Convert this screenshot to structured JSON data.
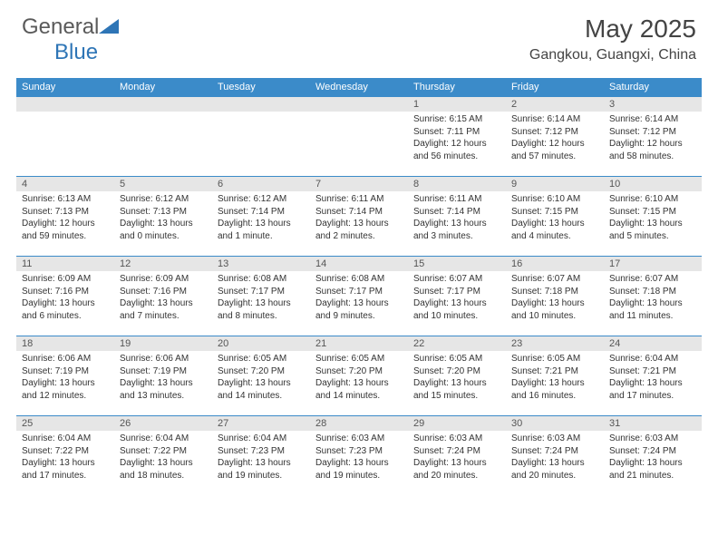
{
  "logo": {
    "text1": "General",
    "text2": "Blue"
  },
  "title": "May 2025",
  "location": "Gangkou, Guangxi, China",
  "colors": {
    "header_bg": "#3b8bc9",
    "header_text": "#ffffff",
    "daybar_bg": "#e6e6e6",
    "daybar_border": "#3b8bc9",
    "body_bg": "#ffffff",
    "text": "#333333",
    "logo_gray": "#5a5a5a",
    "logo_blue": "#2e75b6"
  },
  "weekdays": [
    "Sunday",
    "Monday",
    "Tuesday",
    "Wednesday",
    "Thursday",
    "Friday",
    "Saturday"
  ],
  "layout": {
    "first_weekday_index": 4,
    "days_in_month": 31
  },
  "days": {
    "1": {
      "sunrise": "6:15 AM",
      "sunset": "7:11 PM",
      "daylight": "12 hours and 56 minutes."
    },
    "2": {
      "sunrise": "6:14 AM",
      "sunset": "7:12 PM",
      "daylight": "12 hours and 57 minutes."
    },
    "3": {
      "sunrise": "6:14 AM",
      "sunset": "7:12 PM",
      "daylight": "12 hours and 58 minutes."
    },
    "4": {
      "sunrise": "6:13 AM",
      "sunset": "7:13 PM",
      "daylight": "12 hours and 59 minutes."
    },
    "5": {
      "sunrise": "6:12 AM",
      "sunset": "7:13 PM",
      "daylight": "13 hours and 0 minutes."
    },
    "6": {
      "sunrise": "6:12 AM",
      "sunset": "7:14 PM",
      "daylight": "13 hours and 1 minute."
    },
    "7": {
      "sunrise": "6:11 AM",
      "sunset": "7:14 PM",
      "daylight": "13 hours and 2 minutes."
    },
    "8": {
      "sunrise": "6:11 AM",
      "sunset": "7:14 PM",
      "daylight": "13 hours and 3 minutes."
    },
    "9": {
      "sunrise": "6:10 AM",
      "sunset": "7:15 PM",
      "daylight": "13 hours and 4 minutes."
    },
    "10": {
      "sunrise": "6:10 AM",
      "sunset": "7:15 PM",
      "daylight": "13 hours and 5 minutes."
    },
    "11": {
      "sunrise": "6:09 AM",
      "sunset": "7:16 PM",
      "daylight": "13 hours and 6 minutes."
    },
    "12": {
      "sunrise": "6:09 AM",
      "sunset": "7:16 PM",
      "daylight": "13 hours and 7 minutes."
    },
    "13": {
      "sunrise": "6:08 AM",
      "sunset": "7:17 PM",
      "daylight": "13 hours and 8 minutes."
    },
    "14": {
      "sunrise": "6:08 AM",
      "sunset": "7:17 PM",
      "daylight": "13 hours and 9 minutes."
    },
    "15": {
      "sunrise": "6:07 AM",
      "sunset": "7:17 PM",
      "daylight": "13 hours and 10 minutes."
    },
    "16": {
      "sunrise": "6:07 AM",
      "sunset": "7:18 PM",
      "daylight": "13 hours and 10 minutes."
    },
    "17": {
      "sunrise": "6:07 AM",
      "sunset": "7:18 PM",
      "daylight": "13 hours and 11 minutes."
    },
    "18": {
      "sunrise": "6:06 AM",
      "sunset": "7:19 PM",
      "daylight": "13 hours and 12 minutes."
    },
    "19": {
      "sunrise": "6:06 AM",
      "sunset": "7:19 PM",
      "daylight": "13 hours and 13 minutes."
    },
    "20": {
      "sunrise": "6:05 AM",
      "sunset": "7:20 PM",
      "daylight": "13 hours and 14 minutes."
    },
    "21": {
      "sunrise": "6:05 AM",
      "sunset": "7:20 PM",
      "daylight": "13 hours and 14 minutes."
    },
    "22": {
      "sunrise": "6:05 AM",
      "sunset": "7:20 PM",
      "daylight": "13 hours and 15 minutes."
    },
    "23": {
      "sunrise": "6:05 AM",
      "sunset": "7:21 PM",
      "daylight": "13 hours and 16 minutes."
    },
    "24": {
      "sunrise": "6:04 AM",
      "sunset": "7:21 PM",
      "daylight": "13 hours and 17 minutes."
    },
    "25": {
      "sunrise": "6:04 AM",
      "sunset": "7:22 PM",
      "daylight": "13 hours and 17 minutes."
    },
    "26": {
      "sunrise": "6:04 AM",
      "sunset": "7:22 PM",
      "daylight": "13 hours and 18 minutes."
    },
    "27": {
      "sunrise": "6:04 AM",
      "sunset": "7:23 PM",
      "daylight": "13 hours and 19 minutes."
    },
    "28": {
      "sunrise": "6:03 AM",
      "sunset": "7:23 PM",
      "daylight": "13 hours and 19 minutes."
    },
    "29": {
      "sunrise": "6:03 AM",
      "sunset": "7:24 PM",
      "daylight": "13 hours and 20 minutes."
    },
    "30": {
      "sunrise": "6:03 AM",
      "sunset": "7:24 PM",
      "daylight": "13 hours and 20 minutes."
    },
    "31": {
      "sunrise": "6:03 AM",
      "sunset": "7:24 PM",
      "daylight": "13 hours and 21 minutes."
    }
  },
  "labels": {
    "sunrise": "Sunrise:",
    "sunset": "Sunset:",
    "daylight": "Daylight:"
  }
}
